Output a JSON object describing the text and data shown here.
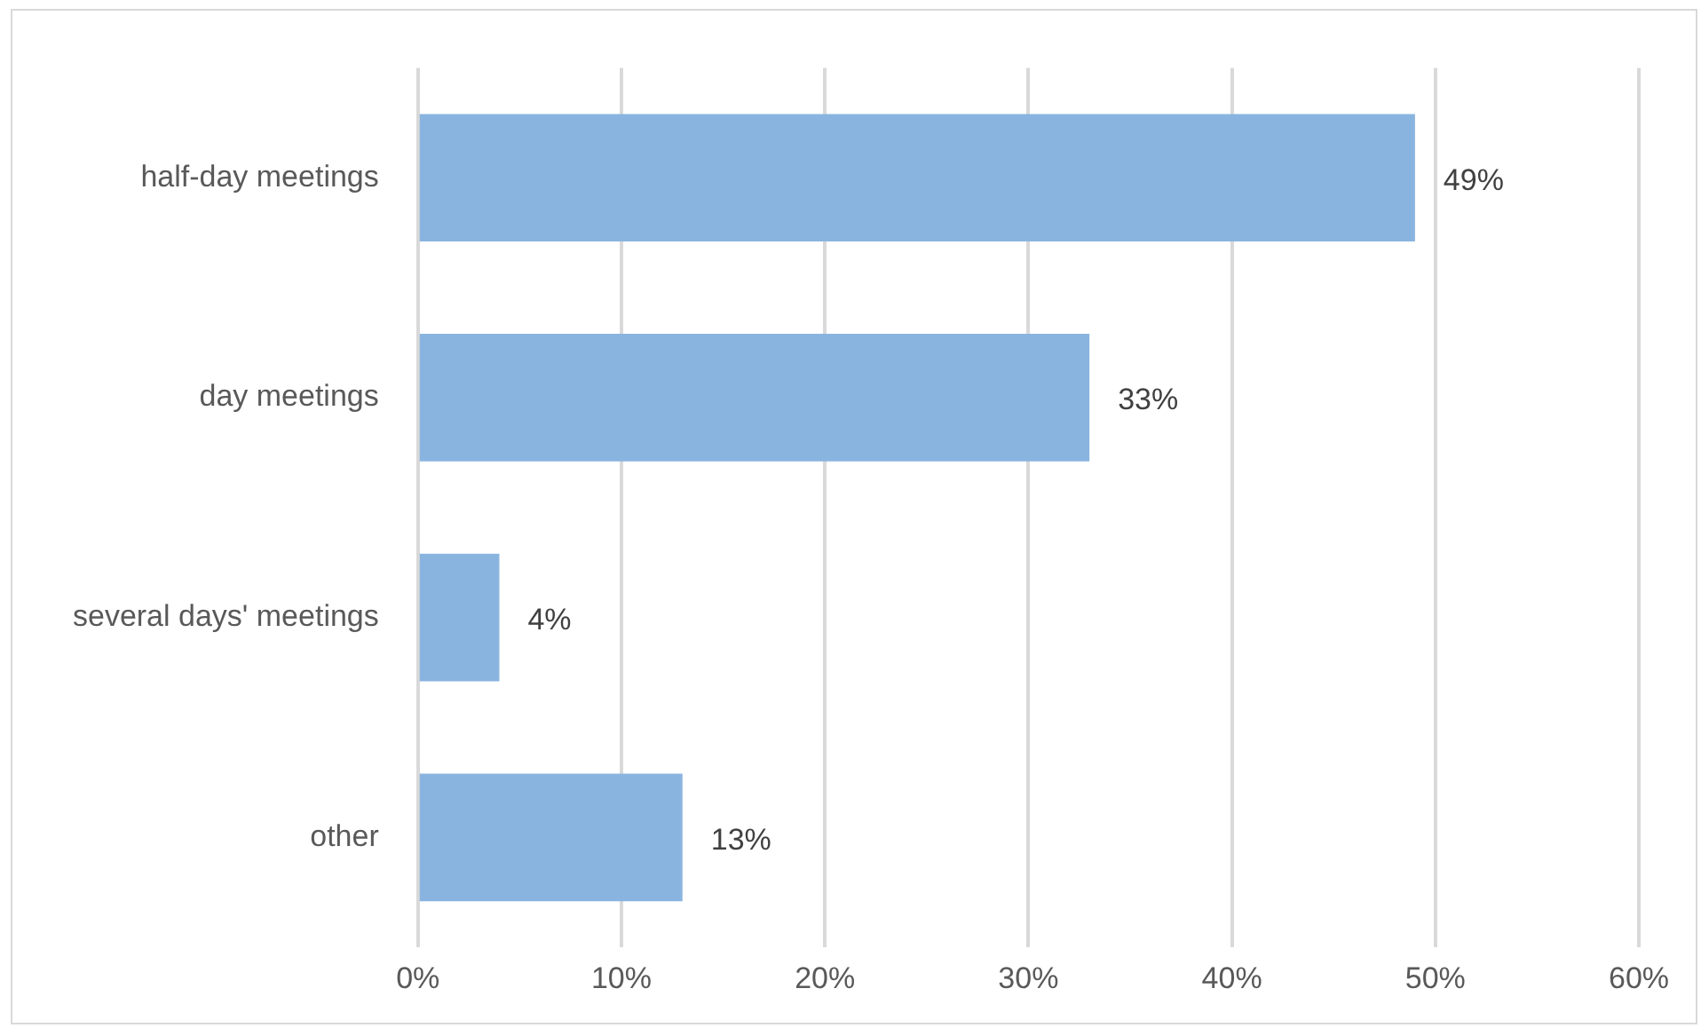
{
  "chart_data": {
    "type": "bar",
    "orientation": "horizontal",
    "categories": [
      "half-day meetings",
      "day meetings",
      "several days' meetings",
      "other"
    ],
    "values": [
      49,
      33,
      4,
      13
    ],
    "color": "#8ab4e0",
    "value_labels": [
      "49%",
      "33%",
      "4%",
      "13%"
    ],
    "xlim": [
      0,
      60
    ],
    "xticks": [
      {
        "value": 0,
        "label": "0%"
      },
      {
        "value": 10,
        "label": "10%"
      },
      {
        "value": 20,
        "label": "20%"
      },
      {
        "value": 30,
        "label": "30%"
      },
      {
        "value": 40,
        "label": "40%"
      },
      {
        "value": 50,
        "label": "50%"
      },
      {
        "value": 60,
        "label": "60%"
      }
    ],
    "grid": "x",
    "legend": false
  }
}
